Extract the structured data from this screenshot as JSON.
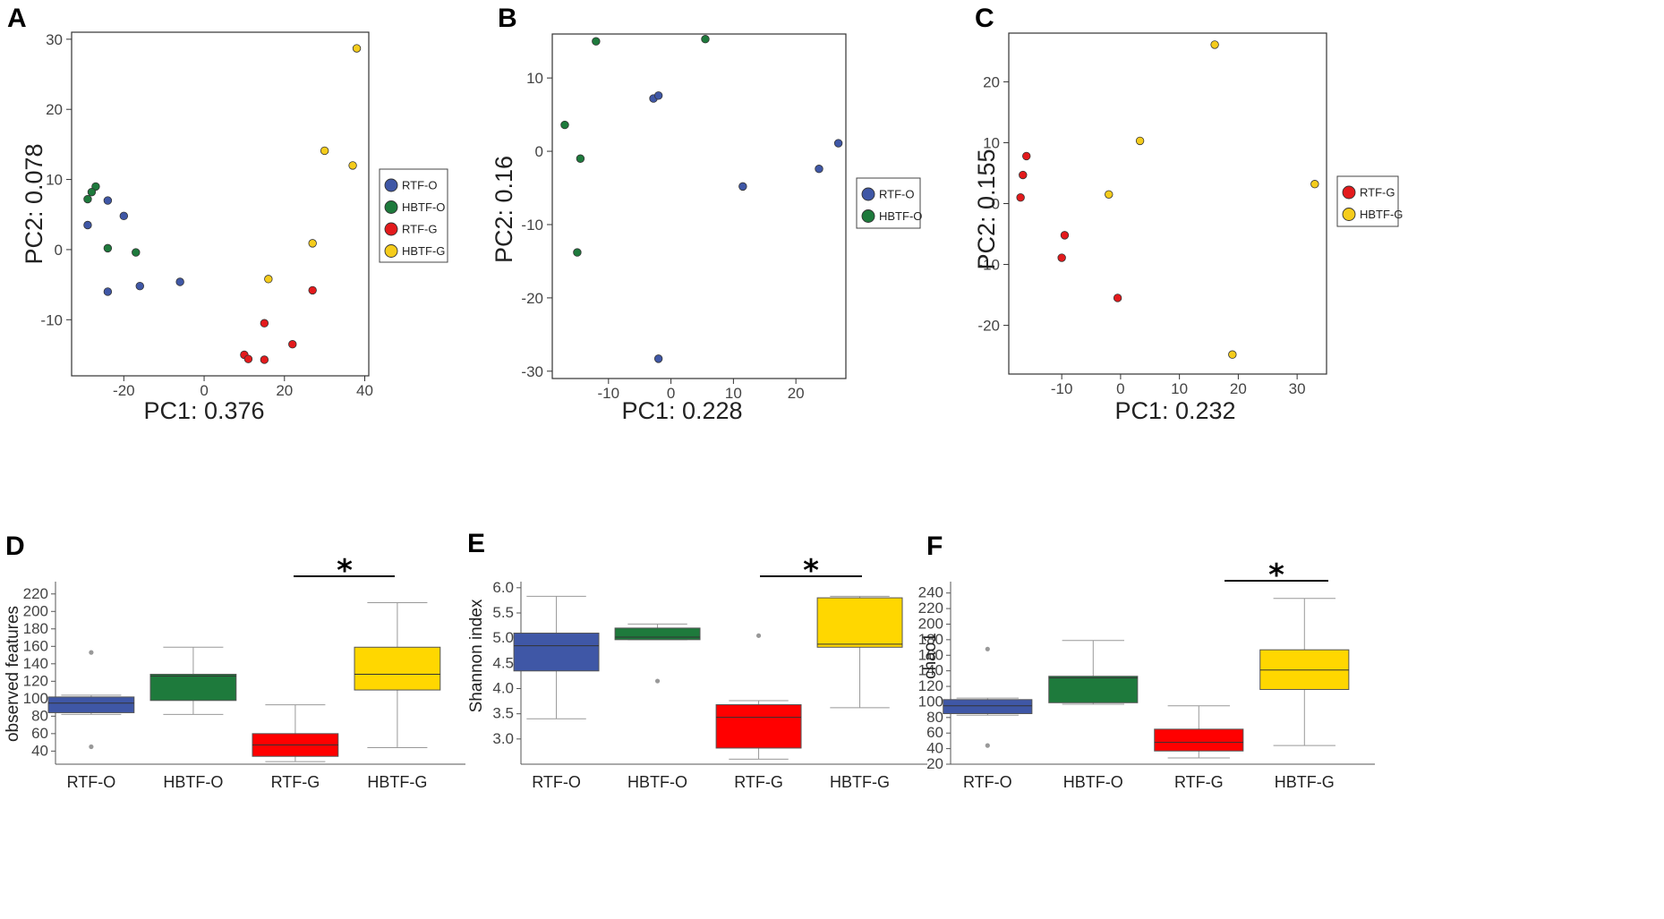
{
  "chart_data": [
    {
      "panel": "A",
      "type": "scatter",
      "xlabel": "PC1:  0.376",
      "ylabel": "PC2:  0.078",
      "xlim": [
        -33,
        41
      ],
      "ylim": [
        -18,
        31
      ],
      "xticks": [
        -20,
        0,
        20,
        40
      ],
      "yticks": [
        -10,
        0,
        10,
        20,
        30
      ],
      "xtick_labels": [
        "-20",
        "0",
        "20",
        "40"
      ],
      "ytick_labels": [
        "-10",
        "0",
        "10",
        "20",
        "30"
      ],
      "legend_position": "right",
      "series": [
        {
          "name": "RTF-O",
          "color": "#3f57a6",
          "points": [
            [
              -29,
              3.5
            ],
            [
              -24,
              7
            ],
            [
              -20,
              4.8
            ],
            [
              -24,
              -6
            ],
            [
              -16,
              -5.2
            ],
            [
              -6,
              -4.6
            ]
          ]
        },
        {
          "name": "HBTF-O",
          "color": "#1e7a3c",
          "points": [
            [
              -27,
              9
            ],
            [
              -28,
              8.2
            ],
            [
              -29,
              7.2
            ],
            [
              -24,
              0.2
            ],
            [
              -17,
              -0.4
            ]
          ]
        },
        {
          "name": "RTF-G",
          "color": "#e31a1c",
          "points": [
            [
              15,
              -10.5
            ],
            [
              27,
              -5.8
            ],
            [
              22,
              -13.5
            ],
            [
              10,
              -15
            ],
            [
              11,
              -15.6
            ],
            [
              15,
              -15.7
            ]
          ]
        },
        {
          "name": "HBTF-G",
          "color": "#f5cc1c",
          "points": [
            [
              38,
              28.7
            ],
            [
              30,
              14.1
            ],
            [
              37,
              12
            ],
            [
              27,
              0.9
            ],
            [
              16,
              -4.2
            ]
          ]
        }
      ]
    },
    {
      "panel": "B",
      "type": "scatter",
      "xlabel": "PC1:  0.228",
      "ylabel": "PC2:  0.16",
      "xlim": [
        -19,
        28
      ],
      "ylim": [
        -31,
        16
      ],
      "xticks": [
        -10,
        0,
        10,
        20
      ],
      "yticks": [
        -30,
        -20,
        -10,
        0,
        10
      ],
      "xtick_labels": [
        "-10",
        "0",
        "10",
        "20"
      ],
      "ytick_labels": [
        "-30",
        "-20",
        "-10",
        "0",
        "10"
      ],
      "legend_position": "right",
      "series": [
        {
          "name": "RTF-O",
          "color": "#3f57a6",
          "points": [
            [
              -2.8,
              7.2
            ],
            [
              -2,
              7.6
            ],
            [
              11.5,
              -4.8
            ],
            [
              23.7,
              -2.4
            ],
            [
              26.8,
              1.1
            ],
            [
              -2,
              -28.3
            ]
          ]
        },
        {
          "name": "HBTF-O",
          "color": "#1e7a3c",
          "points": [
            [
              -12,
              15
            ],
            [
              5.5,
              15.3
            ],
            [
              -17,
              3.6
            ],
            [
              -14.5,
              -1
            ],
            [
              -15,
              -13.8
            ]
          ]
        }
      ]
    },
    {
      "panel": "C",
      "type": "scatter",
      "xlabel": "PC1:  0.232",
      "ylabel": "PC2:  0.155",
      "xlim": [
        -19,
        35
      ],
      "ylim": [
        -28,
        28
      ],
      "xticks": [
        -10,
        0,
        10,
        20,
        30
      ],
      "yticks": [
        -20,
        -10,
        0,
        10,
        20
      ],
      "xtick_labels": [
        "-10",
        "0",
        "10",
        "20",
        "30"
      ],
      "ytick_labels": [
        "-20",
        "-10",
        "0",
        "10",
        "20"
      ],
      "legend_position": "right",
      "series": [
        {
          "name": "RTF-G",
          "color": "#e31a1c",
          "points": [
            [
              -16,
              7.8
            ],
            [
              -16.6,
              4.7
            ],
            [
              -17,
              1
            ],
            [
              -9.5,
              -5.2
            ],
            [
              -10,
              -8.9
            ],
            [
              -0.5,
              -15.5
            ]
          ]
        },
        {
          "name": "HBTF-G",
          "color": "#f5cc1c",
          "points": [
            [
              16,
              26.1
            ],
            [
              3.3,
              10.3
            ],
            [
              -2,
              1.5
            ],
            [
              33,
              3.2
            ],
            [
              19,
              -24.8
            ]
          ]
        }
      ]
    },
    {
      "panel": "D",
      "type": "box",
      "xlabel": "",
      "ylabel": "observed features",
      "ylim": [
        25,
        230
      ],
      "yticks": [
        40,
        60,
        80,
        100,
        120,
        140,
        160,
        180,
        200,
        220
      ],
      "ytick_labels": [
        "40",
        "60",
        "80",
        "100",
        "120",
        "140",
        "160",
        "180",
        "200",
        "220"
      ],
      "categories": [
        "RTF-O",
        "HBTF-O",
        "RTF-G",
        "HBTF-G"
      ],
      "boxes": [
        {
          "name": "RTF-O",
          "color": "#3f57a6",
          "min": 82,
          "q1": 84,
          "median": 95,
          "q3": 102,
          "max": 104,
          "outliers": [
            153,
            45
          ]
        },
        {
          "name": "HBTF-O",
          "color": "#1e7a3c",
          "min": 82,
          "q1": 98,
          "median": 126,
          "q3": 128,
          "max": 159,
          "outliers": []
        },
        {
          "name": "RTF-G",
          "color": "#ff0000",
          "min": 28,
          "q1": 34,
          "median": 47,
          "q3": 60,
          "max": 93,
          "outliers": []
        },
        {
          "name": "HBTF-G",
          "color": "#ffd700",
          "min": 44,
          "q1": 110,
          "median": 128,
          "q3": 159,
          "max": 210,
          "outliers": []
        }
      ],
      "significance": {
        "between": [
          "RTF-G",
          "HBTF-G"
        ],
        "label": "*"
      }
    },
    {
      "panel": "E",
      "type": "box",
      "xlabel": "",
      "ylabel": "Shannon index",
      "ylim": [
        2.5,
        6.05
      ],
      "yticks": [
        3.0,
        3.5,
        4.0,
        4.5,
        5.0,
        5.5,
        6.0
      ],
      "ytick_labels": [
        "3.0",
        "3.5",
        "4.0",
        "4.5",
        "5.0",
        "5.5",
        "6.0"
      ],
      "categories": [
        "RTF-O",
        "HBTF-O",
        "RTF-G",
        "HBTF-G"
      ],
      "boxes": [
        {
          "name": "RTF-O",
          "color": "#3f57a6",
          "min": 3.4,
          "q1": 4.35,
          "median": 4.85,
          "q3": 5.1,
          "max": 5.83,
          "outliers": []
        },
        {
          "name": "HBTF-O",
          "color": "#1e7a3c",
          "min": 4.97,
          "q1": 4.97,
          "median": 5.02,
          "q3": 5.2,
          "max": 5.28,
          "outliers": [
            4.15
          ]
        },
        {
          "name": "RTF-G",
          "color": "#ff0000",
          "min": 2.6,
          "q1": 2.82,
          "median": 3.43,
          "q3": 3.68,
          "max": 3.76,
          "outliers": [
            5.05
          ]
        },
        {
          "name": "HBTF-G",
          "color": "#ffd700",
          "min": 3.62,
          "q1": 4.82,
          "median": 4.88,
          "q3": 5.8,
          "max": 5.83,
          "outliers": []
        }
      ],
      "significance": {
        "between": [
          "RTF-G",
          "HBTF-G"
        ],
        "label": "*"
      }
    },
    {
      "panel": "F",
      "type": "box",
      "xlabel": "",
      "ylabel": "chao1",
      "ylim": [
        20,
        250
      ],
      "yticks": [
        20,
        40,
        60,
        80,
        100,
        120,
        140,
        160,
        180,
        200,
        220,
        240
      ],
      "ytick_labels": [
        "20",
        "40",
        "60",
        "80",
        "100",
        "120",
        "140",
        "160",
        "180",
        "200",
        "220",
        "240"
      ],
      "categories": [
        "RTF-O",
        "HBTF-O",
        "RTF-G",
        "HBTF-G"
      ],
      "boxes": [
        {
          "name": "RTF-O",
          "color": "#3f57a6",
          "min": 83,
          "q1": 85,
          "median": 95,
          "q3": 103,
          "max": 105,
          "outliers": [
            168,
            44
          ]
        },
        {
          "name": "HBTF-O",
          "color": "#1e7a3c",
          "min": 97,
          "q1": 99,
          "median": 131,
          "q3": 133,
          "max": 179,
          "outliers": []
        },
        {
          "name": "RTF-G",
          "color": "#ff0000",
          "min": 28,
          "q1": 37,
          "median": 48,
          "q3": 65,
          "max": 95,
          "outliers": []
        },
        {
          "name": "HBTF-G",
          "color": "#ffd700",
          "min": 44,
          "q1": 116,
          "median": 141,
          "q3": 167,
          "max": 233,
          "outliers": []
        }
      ],
      "significance": {
        "between": [
          "RTF-G",
          "HBTF-G"
        ],
        "label": "*"
      }
    }
  ]
}
